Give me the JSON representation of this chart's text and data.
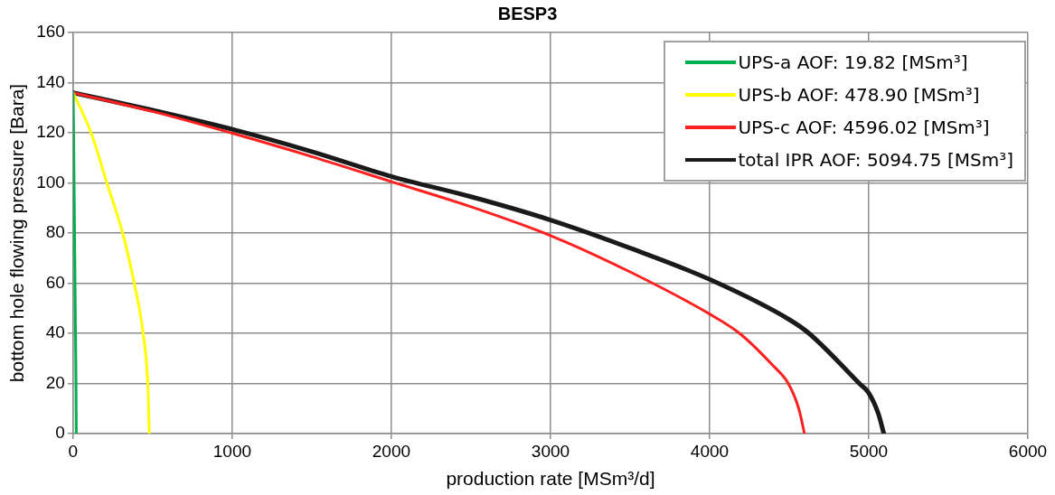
{
  "chart_data": {
    "type": "line",
    "title": "BESP3",
    "xlabel": "production rate [MSm³/d]",
    "ylabel": "bottom hole flowing pressure [Bara]",
    "xlim": [
      0,
      6000
    ],
    "xticks": [
      0,
      1000,
      2000,
      3000,
      4000,
      5000,
      6000
    ],
    "ylim": [
      0,
      160
    ],
    "yticks": [
      0,
      20,
      40,
      60,
      80,
      100,
      120,
      140,
      160
    ],
    "grid": true,
    "legend": "top right",
    "marker": "none",
    "line_style": "solid",
    "series": [
      {
        "name": "UPS-a AOF: 19.82 [MSm³]",
        "color": "#00b050",
        "x": [
          0,
          3,
          6,
          9,
          12,
          15,
          18,
          19.82
        ],
        "values": [
          136,
          120,
          100,
          80,
          60,
          40,
          20,
          0
        ]
      },
      {
        "name": "UPS-b AOF: 478.90 [MSm³]",
        "color": "#ffff00",
        "x": [
          0,
          113,
          212,
          311,
          384,
          440,
          469,
          479
        ],
        "values": [
          136,
          120,
          100,
          80,
          60,
          40,
          20,
          0
        ]
      },
      {
        "name": "UPS-c AOF: 4596.02 [MSm³]",
        "color": "#ff2020",
        "x": [
          0,
          500,
          1000,
          1500,
          2000,
          2500,
          3000,
          3500,
          4000,
          4188,
          4400,
          4494,
          4560,
          4596
        ],
        "values": [
          136,
          128.5,
          119.8,
          110.5,
          100.5,
          90.5,
          79,
          64.5,
          47.7,
          40,
          27,
          20,
          10,
          0
        ]
      },
      {
        "name": "total IPR AOF: 5094.75 [MSm³]",
        "color": "#1a1a1a",
        "x": [
          0,
          500,
          1000,
          1500,
          2000,
          2500,
          3000,
          3500,
          4000,
          4500,
          4624,
          4941,
          5000,
          5060,
          5094.75
        ],
        "values": [
          136,
          129,
          121.4,
          112.5,
          102.6,
          94.5,
          85.2,
          74,
          61.5,
          45.5,
          40,
          20,
          16.2,
          8,
          0
        ]
      }
    ]
  }
}
